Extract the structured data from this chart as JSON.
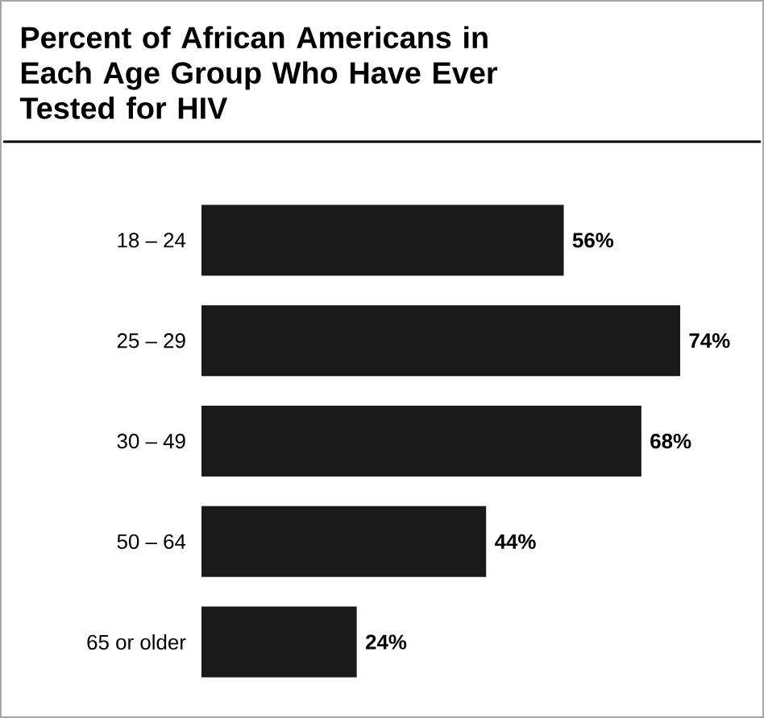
{
  "chart_data": {
    "type": "bar",
    "orientation": "horizontal",
    "title": "Percent of African Americans in Each Age Group Who Have Ever Tested for HIV",
    "categories": [
      "18 – 24",
      "25 – 29",
      "30 – 49",
      "50 – 64",
      "65 or older"
    ],
    "values": [
      56,
      74,
      68,
      44,
      24
    ],
    "value_labels": [
      "56%",
      "74%",
      "68%",
      "44%",
      "24%"
    ],
    "color": "#1a1a1a"
  }
}
